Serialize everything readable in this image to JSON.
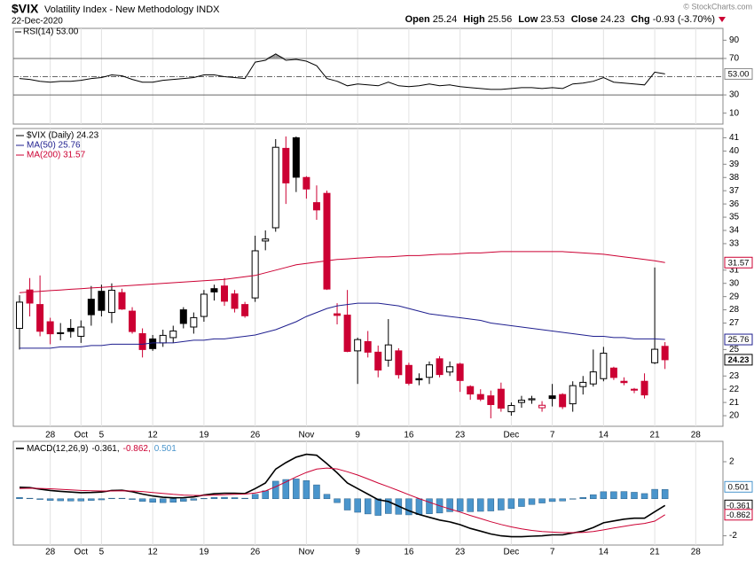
{
  "header": {
    "symbol": "$VIX",
    "name": "Volatility Index - New Methodology INDX",
    "date": "22-Dec-2020",
    "quote": [
      {
        "label": "Open",
        "value": "25.24"
      },
      {
        "label": "High",
        "value": "25.56"
      },
      {
        "label": "Low",
        "value": "23.53"
      },
      {
        "label": "Close",
        "value": "24.23"
      },
      {
        "label": "Chg",
        "value": "-0.93 (-3.70%)"
      }
    ],
    "copyright": "© StockCharts.com"
  },
  "chart_data": [
    {
      "type": "line",
      "title": "RSI(14) 53.00",
      "color": "#000000",
      "last_label": "53.00",
      "categories": [
        null,
        null,
        null,
        "28",
        null,
        null,
        "Oct",
        null,
        "5",
        null,
        null,
        null,
        null,
        "12",
        null,
        null,
        null,
        null,
        "19",
        null,
        null,
        null,
        null,
        "26",
        null,
        null,
        null,
        null,
        "Nov",
        null,
        null,
        null,
        null,
        "9",
        null,
        null,
        null,
        null,
        "16",
        null,
        null,
        null,
        null,
        "23",
        null,
        null,
        null,
        null,
        "Dec",
        null,
        null,
        null,
        "7",
        null,
        null,
        null,
        null,
        "14",
        null,
        null,
        null,
        null,
        "21",
        null,
        null,
        null,
        "28"
      ],
      "values": [
        48,
        47,
        45,
        44,
        45,
        45,
        46,
        48,
        49,
        52,
        51,
        47,
        44,
        44,
        46,
        47,
        48,
        49,
        52,
        52,
        50,
        49,
        48,
        66,
        68,
        75,
        68,
        69,
        67,
        62,
        48,
        45,
        40,
        42,
        41,
        40,
        44,
        40,
        39,
        40,
        42,
        40,
        41,
        39,
        38,
        37,
        36,
        36,
        37,
        38,
        38,
        37,
        38,
        37,
        42,
        43,
        45,
        49,
        44,
        43,
        42,
        41,
        55,
        53,
        null,
        null,
        null
      ],
      "ylim": [
        -2,
        103
      ],
      "yticks": [
        10,
        30,
        70,
        90
      ],
      "levels": [
        30,
        70
      ],
      "center_level": 50,
      "grid": true
    },
    {
      "type": "candlestick",
      "title": "$VIX (Daily) 24.23",
      "last_label": "24.23",
      "up_color": "#000000",
      "down_color": "#cc0033",
      "categories": [
        null,
        null,
        null,
        "28",
        null,
        null,
        "Oct",
        null,
        "5",
        null,
        null,
        null,
        null,
        "12",
        null,
        null,
        null,
        null,
        "19",
        null,
        null,
        null,
        null,
        "26",
        null,
        null,
        null,
        null,
        "Nov",
        null,
        null,
        null,
        null,
        "9",
        null,
        null,
        null,
        null,
        "16",
        null,
        null,
        null,
        null,
        "23",
        null,
        null,
        null,
        null,
        "Dec",
        null,
        null,
        null,
        "7",
        null,
        null,
        null,
        null,
        "14",
        null,
        null,
        null,
        null,
        "21",
        null,
        null,
        null,
        "28"
      ],
      "open": [
        26.6,
        29.5,
        28.4,
        27.1,
        26.2,
        26.6,
        26.0,
        28.8,
        29.4,
        27.8,
        29.3,
        27.9,
        26.2,
        25.8,
        25.5,
        25.9,
        28.0,
        26.7,
        27.5,
        29.6,
        29.8,
        29.2,
        28.4,
        28.9,
        33.2,
        34.2,
        40.2,
        41.0,
        38.0,
        36.1,
        36.8,
        27.7,
        27.6,
        24.9,
        25.6,
        24.8,
        24.2,
        24.9,
        23.8,
        22.8,
        22.9,
        24.3,
        23.3,
        23.9,
        22.2,
        21.6,
        21.5,
        22.0,
        20.3,
        21.0,
        21.2,
        20.6,
        21.5,
        21.6,
        20.9,
        22.2,
        22.4,
        22.8,
        23.6,
        22.6,
        22.0,
        22.6,
        24.0,
        25.24,
        null,
        null,
        null
      ],
      "high": [
        29.1,
        30.4,
        30.6,
        27.4,
        27.0,
        27.3,
        27.2,
        29.8,
        29.9,
        30.0,
        29.6,
        28.2,
        26.6,
        26.1,
        26.5,
        26.8,
        28.2,
        27.8,
        29.5,
        29.9,
        30.4,
        29.5,
        28.6,
        33.6,
        34.0,
        40.9,
        41.1,
        41.1,
        38.1,
        37.4,
        37.0,
        28.5,
        29.5,
        25.9,
        26.4,
        25.3,
        27.3,
        25.1,
        24.0,
        23.2,
        24.1,
        24.5,
        24.1,
        24.0,
        22.3,
        22.0,
        21.9,
        22.5,
        21.0,
        21.5,
        21.5,
        21.1,
        22.4,
        21.7,
        22.6,
        23.0,
        25.0,
        25.2,
        23.7,
        22.9,
        22.1,
        23.2,
        31.2,
        25.56,
        null,
        null,
        null
      ],
      "low": [
        25.0,
        27.5,
        26.0,
        25.4,
        25.7,
        25.9,
        25.5,
        26.8,
        27.5,
        27.0,
        28.0,
        26.2,
        24.4,
        24.9,
        25.2,
        25.5,
        26.6,
        26.2,
        27.1,
        28.7,
        28.3,
        27.8,
        27.4,
        28.6,
        32.5,
        33.9,
        36.0,
        36.9,
        36.4,
        34.8,
        29.5,
        26.9,
        24.8,
        22.4,
        24.4,
        22.9,
        23.7,
        22.8,
        22.3,
        22.3,
        22.4,
        22.9,
        23.0,
        21.8,
        21.2,
        21.1,
        19.8,
        20.3,
        20.0,
        20.6,
        20.9,
        20.3,
        20.7,
        20.5,
        20.3,
        21.6,
        22.2,
        22.6,
        22.7,
        22.3,
        21.7,
        21.3,
        23.9,
        23.53,
        null,
        null,
        null
      ],
      "close": [
        28.58,
        28.51,
        26.38,
        26.19,
        26.27,
        26.37,
        26.7,
        27.63,
        27.96,
        29.48,
        28.06,
        26.36,
        25.0,
        25.07,
        26.07,
        26.4,
        26.97,
        27.41,
        29.18,
        29.35,
        28.65,
        28.11,
        27.55,
        32.46,
        33.35,
        40.28,
        37.59,
        38.02,
        37.13,
        35.55,
        29.57,
        27.58,
        24.86,
        25.75,
        24.8,
        23.45,
        25.35,
        23.1,
        22.45,
        22.71,
        23.84,
        23.11,
        23.7,
        22.66,
        21.64,
        21.25,
        20.84,
        20.57,
        20.77,
        21.17,
        21.28,
        20.79,
        21.3,
        20.68,
        22.27,
        22.52,
        23.31,
        24.72,
        22.89,
        22.5,
        21.93,
        21.57,
        25.02,
        24.23,
        null,
        null,
        null
      ],
      "series": [
        {
          "name": "MA(50) 25.76",
          "color": "#1f1f8f",
          "last_label": "25.76",
          "values": [
            25.1,
            25.1,
            25.1,
            25.1,
            25.2,
            25.2,
            25.2,
            25.3,
            25.3,
            25.4,
            25.4,
            25.4,
            25.4,
            25.5,
            25.5,
            25.5,
            25.6,
            25.7,
            25.7,
            25.8,
            25.8,
            25.9,
            26.0,
            26.1,
            26.3,
            26.5,
            26.8,
            27.1,
            27.5,
            27.8,
            28.1,
            28.3,
            28.4,
            28.5,
            28.5,
            28.5,
            28.4,
            28.3,
            28.1,
            27.9,
            27.7,
            27.6,
            27.5,
            27.4,
            27.3,
            27.2,
            27.0,
            26.9,
            26.8,
            26.7,
            26.6,
            26.5,
            26.4,
            26.3,
            26.2,
            26.1,
            26.0,
            26.0,
            25.9,
            25.9,
            25.8,
            25.8,
            25.8,
            25.76,
            null,
            null,
            null
          ]
        },
        {
          "name": "MA(200) 31.57",
          "color": "#cc0033",
          "last_label": "31.57",
          "values": [
            29.3,
            29.35,
            29.4,
            29.45,
            29.5,
            29.55,
            29.6,
            29.65,
            29.7,
            29.75,
            29.8,
            29.85,
            29.9,
            29.95,
            30.0,
            30.05,
            30.1,
            30.15,
            30.2,
            30.25,
            30.3,
            30.4,
            30.5,
            30.6,
            30.8,
            31.0,
            31.2,
            31.4,
            31.5,
            31.6,
            31.7,
            31.8,
            31.85,
            31.9,
            31.95,
            32.0,
            32.0,
            32.05,
            32.1,
            32.1,
            32.15,
            32.2,
            32.2,
            32.25,
            32.3,
            32.3,
            32.35,
            32.4,
            32.4,
            32.4,
            32.4,
            32.4,
            32.4,
            32.4,
            32.35,
            32.3,
            32.25,
            32.2,
            32.1,
            32.0,
            31.9,
            31.8,
            31.7,
            31.57,
            null,
            null,
            null
          ]
        }
      ],
      "ylim": [
        19.2,
        41.7
      ],
      "yticks": [
        20,
        21,
        22,
        23,
        25,
        27,
        28,
        29,
        30,
        31,
        33,
        34,
        35,
        36,
        37,
        38,
        39,
        40,
        41
      ],
      "grid": true
    },
    {
      "type": "macd",
      "title": "MACD(12,26,9)",
      "categories": [
        null,
        null,
        null,
        "28",
        null,
        null,
        "Oct",
        null,
        "5",
        null,
        null,
        null,
        null,
        "12",
        null,
        null,
        null,
        null,
        "19",
        null,
        null,
        null,
        null,
        "26",
        null,
        null,
        null,
        null,
        "Nov",
        null,
        null,
        null,
        null,
        "9",
        null,
        null,
        null,
        null,
        "16",
        null,
        null,
        null,
        null,
        "23",
        null,
        null,
        null,
        null,
        "Dec",
        null,
        null,
        null,
        "7",
        null,
        null,
        null,
        null,
        "14",
        null,
        null,
        null,
        null,
        "21",
        null,
        null,
        null,
        "28"
      ],
      "series": [
        {
          "name": "-0.361,",
          "kind": "line",
          "color": "#000000",
          "last_label": "-0.361",
          "values": [
            0.62,
            0.6,
            0.52,
            0.45,
            0.4,
            0.36,
            0.33,
            0.34,
            0.36,
            0.45,
            0.46,
            0.38,
            0.25,
            0.15,
            0.08,
            0.05,
            0.06,
            0.1,
            0.2,
            0.27,
            0.3,
            0.3,
            0.28,
            0.55,
            0.85,
            1.6,
            1.95,
            2.25,
            2.4,
            2.35,
            1.9,
            1.4,
            0.85,
            0.55,
            0.25,
            -0.05,
            -0.15,
            -0.4,
            -0.65,
            -0.85,
            -1.0,
            -1.15,
            -1.25,
            -1.4,
            -1.6,
            -1.75,
            -1.9,
            -2.0,
            -2.05,
            -2.05,
            -2.02,
            -2.0,
            -1.95,
            -1.95,
            -1.85,
            -1.75,
            -1.55,
            -1.3,
            -1.2,
            -1.1,
            -1.05,
            -1.05,
            -0.7,
            -0.361,
            null,
            null,
            null
          ]
        },
        {
          "name": "-0.862,",
          "kind": "line",
          "color": "#cc0033",
          "last_label": "-0.862",
          "values": [
            0.55,
            0.57,
            0.56,
            0.54,
            0.51,
            0.48,
            0.45,
            0.43,
            0.42,
            0.42,
            0.43,
            0.42,
            0.39,
            0.34,
            0.29,
            0.24,
            0.2,
            0.18,
            0.18,
            0.2,
            0.22,
            0.24,
            0.25,
            0.31,
            0.42,
            0.65,
            0.91,
            1.18,
            1.42,
            1.6,
            1.66,
            1.61,
            1.46,
            1.28,
            1.07,
            0.85,
            0.65,
            0.44,
            0.22,
            0.01,
            -0.19,
            -0.38,
            -0.55,
            -0.72,
            -0.9,
            -1.07,
            -1.24,
            -1.39,
            -1.52,
            -1.63,
            -1.71,
            -1.77,
            -1.8,
            -1.83,
            -1.83,
            -1.82,
            -1.77,
            -1.68,
            -1.58,
            -1.49,
            -1.4,
            -1.33,
            -1.21,
            -0.862,
            null,
            null,
            null
          ]
        },
        {
          "name": "0.501",
          "kind": "histogram",
          "color": "#4a95cc",
          "last_label": "0.501",
          "values": [
            0.07,
            0.03,
            -0.04,
            -0.09,
            -0.11,
            -0.12,
            -0.12,
            -0.09,
            -0.06,
            0.03,
            0.03,
            -0.04,
            -0.14,
            -0.19,
            -0.21,
            -0.19,
            -0.14,
            -0.08,
            0.02,
            0.07,
            0.08,
            0.06,
            0.03,
            0.24,
            0.43,
            0.95,
            1.04,
            1.07,
            0.98,
            0.75,
            0.24,
            -0.21,
            -0.61,
            -0.73,
            -0.82,
            -0.9,
            -0.8,
            -0.84,
            -0.87,
            -0.86,
            -0.81,
            -0.77,
            -0.7,
            -0.68,
            -0.7,
            -0.68,
            -0.66,
            -0.61,
            -0.53,
            -0.42,
            -0.31,
            -0.23,
            -0.15,
            -0.12,
            -0.02,
            0.07,
            0.22,
            0.38,
            0.38,
            0.39,
            0.35,
            0.28,
            0.51,
            0.501,
            null,
            null,
            null
          ]
        }
      ],
      "ylim": [
        -2.5,
        3.1
      ],
      "yticks": [
        -2,
        2
      ],
      "grid": true
    }
  ]
}
